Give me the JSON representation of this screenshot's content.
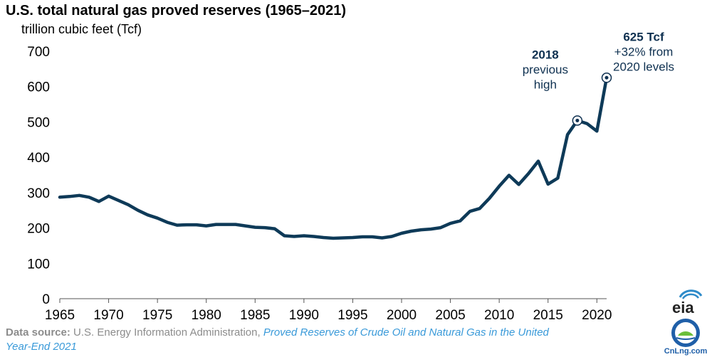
{
  "header": {
    "title": "U.S. total natural gas proved reserves (1965–2021)",
    "unit": "trillion cubic feet (Tcf)"
  },
  "chart_data": {
    "type": "line",
    "title": "U.S. total natural gas proved reserves (1965–2021)",
    "ylabel": "trillion cubic feet (Tcf)",
    "xlabel": "",
    "xlim": [
      1965,
      2021
    ],
    "ylim": [
      0,
      700
    ],
    "x_ticks": [
      "1965",
      "1970",
      "1975",
      "1980",
      "1985",
      "1990",
      "1995",
      "2000",
      "2005",
      "2010",
      "2015",
      "2020"
    ],
    "y_ticks": [
      "0",
      "100",
      "200",
      "300",
      "400",
      "500",
      "600",
      "700"
    ],
    "grid": false,
    "line_color": "#0e3a58",
    "series": [
      {
        "x": [
          1965,
          1966,
          1967,
          1968,
          1969,
          1970,
          1971,
          1972,
          1973,
          1974,
          1975,
          1976,
          1977,
          1978,
          1979,
          1980,
          1981,
          1982,
          1983,
          1984,
          1985,
          1986,
          1987,
          1988,
          1989,
          1990,
          1991,
          1992,
          1993,
          1994,
          1995,
          1996,
          1997,
          1998,
          1999,
          2000,
          2001,
          2002,
          2003,
          2004,
          2005,
          2006,
          2007,
          2008,
          2009,
          2010,
          2011,
          2012,
          2013,
          2014,
          2015,
          2016,
          2017,
          2018,
          2019,
          2020,
          2021
        ],
        "values": [
          287,
          289,
          292,
          287,
          275,
          290,
          278,
          266,
          250,
          237,
          228,
          216,
          208,
          209,
          209,
          206,
          210,
          210,
          210,
          206,
          202,
          201,
          198,
          178,
          176,
          178,
          176,
          173,
          171,
          172,
          173,
          175,
          175,
          172,
          176,
          185,
          191,
          195,
          197,
          201,
          213,
          220,
          247,
          255,
          284,
          318,
          349,
          323,
          354,
          389,
          324,
          341,
          464,
          504,
          495,
          474,
          625
        ]
      }
    ],
    "annotations": [
      {
        "x": 2018,
        "y": 504,
        "lines": [
          "2018",
          "previous",
          "high"
        ]
      },
      {
        "x": 2021,
        "y": 625,
        "lines": [
          "625 Tcf",
          "+32% from",
          "2020 levels"
        ]
      }
    ]
  },
  "footer": {
    "source_lead": "Data source:",
    "source_org": "U.S. Energy Information Administration,",
    "source_report_line1": "Proved Reserves of Crude Oil and Natural Gas in the United",
    "source_report_line2": "Year-End 2021"
  },
  "logos": {
    "eia": "eia",
    "watermark": "CnLng.com"
  }
}
